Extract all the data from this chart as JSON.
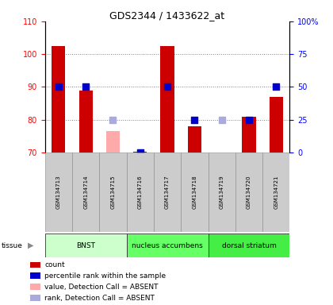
{
  "title": "GDS2344 / 1433622_at",
  "samples": [
    "GSM134713",
    "GSM134714",
    "GSM134715",
    "GSM134716",
    "GSM134717",
    "GSM134718",
    "GSM134719",
    "GSM134720",
    "GSM134721"
  ],
  "bar_values": [
    102.5,
    89.0,
    null,
    70.2,
    102.5,
    78.0,
    70.0,
    81.0,
    87.0
  ],
  "bar_absent_values": [
    null,
    null,
    76.5,
    null,
    null,
    null,
    null,
    null,
    null
  ],
  "rank_values": [
    50,
    50,
    null,
    0,
    50,
    25,
    null,
    25,
    50
  ],
  "rank_absent_values": [
    null,
    null,
    25,
    null,
    null,
    null,
    25,
    null,
    null
  ],
  "bar_color": "#CC0000",
  "bar_absent_color": "#FFAAAA",
  "rank_color": "#0000CC",
  "rank_absent_color": "#AAAADD",
  "left_ylim": [
    70,
    110
  ],
  "right_ylim": [
    0,
    100
  ],
  "left_yticks": [
    70,
    80,
    90,
    100,
    110
  ],
  "right_yticks": [
    0,
    25,
    50,
    75,
    100
  ],
  "right_yticklabels": [
    "0",
    "25",
    "50",
    "75",
    "100%"
  ],
  "groups": [
    {
      "label": "BNST",
      "start": 0,
      "end": 3,
      "color": "#CCFFCC"
    },
    {
      "label": "nucleus accumbens",
      "start": 3,
      "end": 6,
      "color": "#66FF66"
    },
    {
      "label": "dorsal striatum",
      "start": 6,
      "end": 9,
      "color": "#44EE44"
    }
  ],
  "tissue_label": "tissue",
  "legend_items": [
    {
      "label": "count",
      "color": "#CC0000"
    },
    {
      "label": "percentile rank within the sample",
      "color": "#0000CC"
    },
    {
      "label": "value, Detection Call = ABSENT",
      "color": "#FFAAAA"
    },
    {
      "label": "rank, Detection Call = ABSENT",
      "color": "#AAAADD"
    }
  ],
  "bar_width": 0.5,
  "rank_marker_size": 40
}
